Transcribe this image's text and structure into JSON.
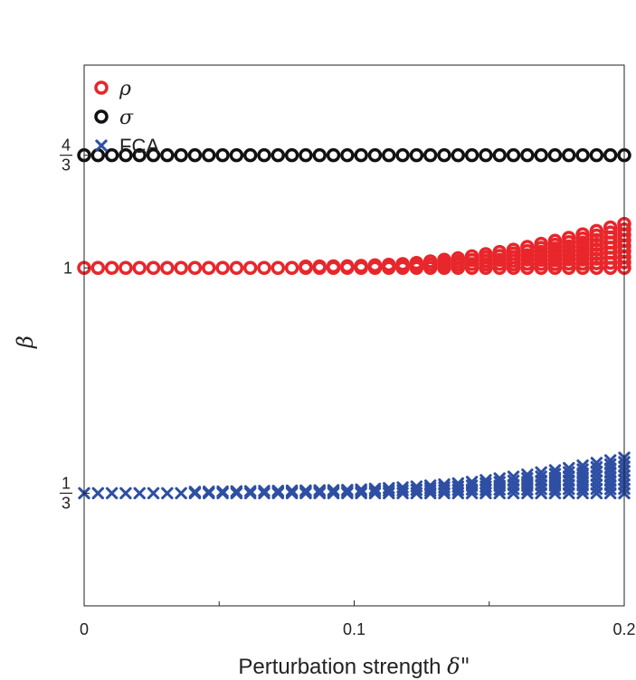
{
  "chart_data": {
    "type": "scatter",
    "xlabel_text": "Perturbation strength ",
    "xlabel_symbol": "δ\"",
    "ylabel": "β",
    "xlim": [
      0,
      0.2
    ],
    "ylim": [
      0,
      1.6
    ],
    "x_ticks": [
      {
        "value": 0,
        "label": "0"
      },
      {
        "value": 0.1,
        "label": "0.1"
      },
      {
        "value": 0.2,
        "label": "0.2"
      }
    ],
    "x_minor_ticks": [
      0.05,
      0.15
    ],
    "y_ticks": [
      {
        "value": 1.3333,
        "num": "4",
        "den": "3",
        "label": ""
      },
      {
        "value": 1.0,
        "num": "",
        "den": "",
        "label": "1"
      },
      {
        "value": 0.3333,
        "num": "1",
        "den": "3",
        "label": ""
      }
    ],
    "legend_position": "top-left",
    "grid": false,
    "series": [
      {
        "name": "ρ",
        "marker": "open-circle",
        "color": "#e8262b",
        "x_start": 0,
        "x_end": 0.2,
        "count": 40,
        "baseline": 1.0,
        "spread": [
          [
            0,
            0
          ],
          [
            0.1,
            0.005
          ],
          [
            0.12,
            0.012
          ],
          [
            0.14,
            0.03
          ],
          [
            0.16,
            0.055
          ],
          [
            0.18,
            0.09
          ],
          [
            0.2,
            0.13
          ]
        ]
      },
      {
        "name": "σ",
        "marker": "open-circle",
        "color": "#111111",
        "x_start": 0,
        "x_end": 0.2,
        "count": 40,
        "baseline": 1.3333,
        "spread": [
          [
            0,
            0
          ],
          [
            0.2,
            0
          ]
        ]
      },
      {
        "name": "FCA",
        "marker": "x",
        "color": "#2e4fa3",
        "x_start": 0,
        "x_end": 0.2,
        "count": 40,
        "baseline": 0.3333,
        "spread": [
          [
            0,
            0
          ],
          [
            0.1,
            0.01
          ],
          [
            0.12,
            0.018
          ],
          [
            0.14,
            0.03
          ],
          [
            0.16,
            0.05
          ],
          [
            0.18,
            0.075
          ],
          [
            0.2,
            0.105
          ]
        ]
      }
    ]
  }
}
